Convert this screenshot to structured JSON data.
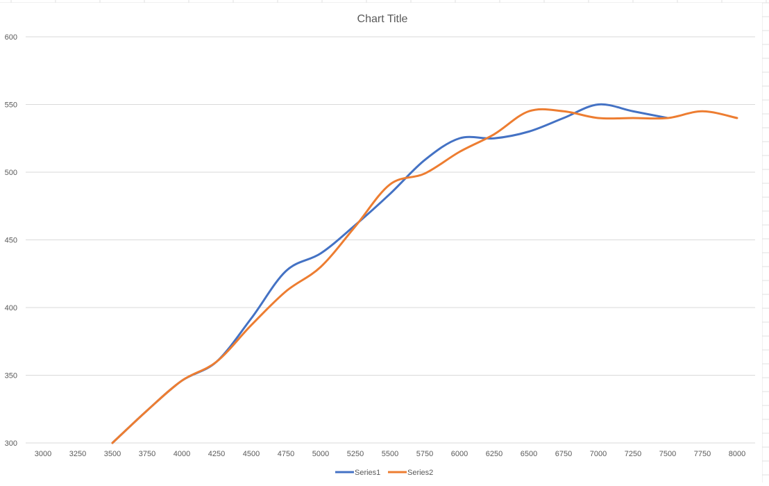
{
  "chart_data": {
    "type": "line",
    "title": "Chart Title",
    "xlabel": "",
    "ylabel": "",
    "categories": [
      "3000",
      "3250",
      "3500",
      "3750",
      "4000",
      "4250",
      "4500",
      "4750",
      "5000",
      "5250",
      "5500",
      "5750",
      "6000",
      "6250",
      "6500",
      "6750",
      "7000",
      "7250",
      "7500",
      "7750",
      "8000"
    ],
    "y_ticks": [
      "300",
      "350",
      "400",
      "450",
      "500",
      "550",
      "600"
    ],
    "ylim": [
      300,
      600
    ],
    "grid": true,
    "smooth": true,
    "legend": "bottom",
    "series": [
      {
        "name": "Series1",
        "color": "#4472C4",
        "values": [
          null,
          null,
          300,
          324,
          346,
          360,
          392,
          427,
          440,
          461,
          484,
          509,
          525,
          525,
          530,
          540,
          550,
          545,
          540,
          null,
          null
        ]
      },
      {
        "name": "Series2",
        "color": "#ED7D31",
        "values": [
          null,
          null,
          300,
          324,
          346,
          360,
          387,
          412,
          430,
          460,
          491,
          499,
          515,
          528,
          545,
          545,
          540,
          540,
          540,
          545,
          540
        ]
      }
    ]
  }
}
